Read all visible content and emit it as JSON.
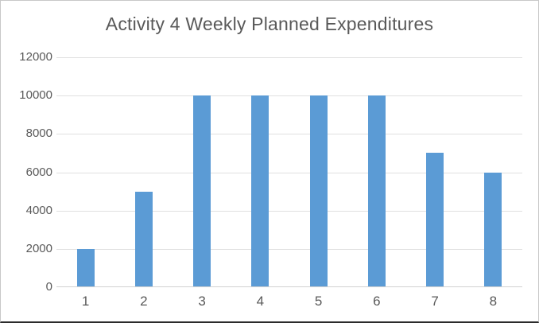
{
  "chart_data": {
    "type": "bar",
    "title": "Activity 4 Weekly Planned Expenditures",
    "categories": [
      "1",
      "2",
      "3",
      "4",
      "5",
      "6",
      "7",
      "8"
    ],
    "values": [
      2000,
      5000,
      10000,
      10000,
      10000,
      10000,
      7000,
      6000
    ],
    "xlabel": "",
    "ylabel": "",
    "ylim": [
      0,
      12000
    ],
    "yticks": [
      0,
      2000,
      4000,
      6000,
      8000,
      10000,
      12000
    ],
    "grid": true,
    "legend": false,
    "bar_color": "#5b9bd5",
    "title_color": "#595959",
    "tick_label_color": "#595959",
    "gridline_color": "#e0e0e0",
    "axis_line_color": "#d2d2d2",
    "frame_border_color": "#c8c8c8",
    "frame_bottom_border_color": "#2b2b2b",
    "background_color": "#ffffff"
  }
}
